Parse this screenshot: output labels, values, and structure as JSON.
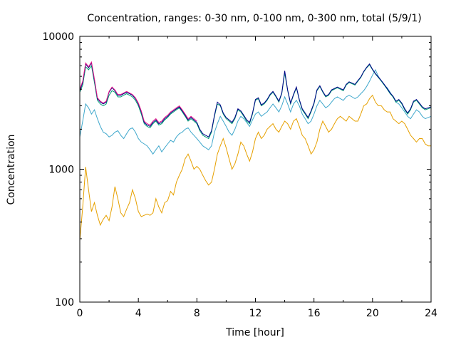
{
  "chart_data": {
    "type": "line",
    "title": "Concentration, ranges: 0-30 nm, 0-100 nm, 0-300 nm, total (5/9/1)",
    "xlabel": "Time [hour]",
    "ylabel": "Concentration",
    "xlim": [
      0,
      24
    ],
    "ylim": [
      100,
      10000
    ],
    "yscale": "log",
    "grid": false,
    "x_ticks": [
      0,
      4,
      8,
      12,
      16,
      20,
      24
    ],
    "x_tick_labels": [
      "0",
      "4",
      "8",
      "12",
      "16",
      "20",
      "24"
    ],
    "y_ticks": [
      100,
      1000,
      10000
    ],
    "y_tick_labels": [
      "100",
      "1000",
      "10000"
    ],
    "series": [
      {
        "color": "#e6a000",
        "x": [
          0,
          0.2,
          0.4,
          0.6,
          0.8,
          1,
          1.2,
          1.4,
          1.6,
          1.8,
          2,
          2.2,
          2.4,
          2.6,
          2.8,
          3,
          3.2,
          3.4,
          3.6,
          3.8,
          4,
          4.2,
          4.4,
          4.6,
          4.8,
          5,
          5.2,
          5.4,
          5.6,
          5.8,
          6,
          6.2,
          6.4,
          6.6,
          6.8,
          7,
          7.2,
          7.4,
          7.6,
          7.8,
          8,
          8.2,
          8.4,
          8.6,
          8.8,
          9,
          9.2,
          9.4,
          9.6,
          9.8,
          10,
          10.2,
          10.4,
          10.6,
          10.8,
          11,
          11.2,
          11.4,
          11.6,
          11.8,
          12,
          12.2,
          12.4,
          12.6,
          12.8,
          13,
          13.2,
          13.4,
          13.6,
          13.8,
          14,
          14.2,
          14.4,
          14.6,
          14.8,
          15,
          15.2,
          15.4,
          15.6,
          15.8,
          16,
          16.2,
          16.4,
          16.6,
          16.8,
          17,
          17.2,
          17.4,
          17.6,
          17.8,
          18,
          18.2,
          18.4,
          18.6,
          18.8,
          19,
          19.2,
          19.4,
          19.6,
          19.8,
          20,
          20.2,
          20.4,
          20.6,
          20.8,
          21,
          21.2,
          21.4,
          21.6,
          21.8,
          22,
          22.2,
          22.4,
          22.6,
          22.8,
          23,
          23.2,
          23.4,
          23.6,
          23.8,
          24
        ],
        "values": [
          290,
          520,
          1040,
          700,
          480,
          560,
          450,
          380,
          420,
          450,
          410,
          520,
          740,
          600,
          470,
          440,
          500,
          560,
          700,
          600,
          480,
          440,
          450,
          460,
          450,
          470,
          600,
          520,
          470,
          560,
          580,
          680,
          640,
          800,
          900,
          1000,
          1200,
          1300,
          1150,
          1000,
          1050,
          1000,
          900,
          820,
          760,
          800,
          1000,
          1300,
          1500,
          1700,
          1450,
          1200,
          1000,
          1100,
          1300,
          1600,
          1500,
          1300,
          1150,
          1350,
          1700,
          1900,
          1700,
          1800,
          2000,
          2100,
          2200,
          2000,
          1900,
          2100,
          2300,
          2200,
          2000,
          2300,
          2400,
          2100,
          1800,
          1700,
          1500,
          1300,
          1400,
          1600,
          2000,
          2300,
          2100,
          1900,
          2000,
          2200,
          2400,
          2500,
          2400,
          2300,
          2500,
          2400,
          2300,
          2300,
          2600,
          3000,
          3100,
          3400,
          3600,
          3200,
          3000,
          3000,
          2800,
          2700,
          2700,
          2400,
          2300,
          2200,
          2300,
          2200,
          2000,
          1800,
          1700,
          1600,
          1700,
          1700,
          1550,
          1500,
          1500
        ]
      },
      {
        "color": "#40a8cc",
        "x": [
          0,
          0.2,
          0.4,
          0.6,
          0.8,
          1,
          1.2,
          1.4,
          1.6,
          1.8,
          2,
          2.2,
          2.4,
          2.6,
          2.8,
          3,
          3.2,
          3.4,
          3.6,
          3.8,
          4,
          4.2,
          4.4,
          4.6,
          4.8,
          5,
          5.2,
          5.4,
          5.6,
          5.8,
          6,
          6.2,
          6.4,
          6.6,
          6.8,
          7,
          7.2,
          7.4,
          7.6,
          7.8,
          8,
          8.2,
          8.4,
          8.6,
          8.8,
          9,
          9.2,
          9.4,
          9.6,
          9.8,
          10,
          10.2,
          10.4,
          10.6,
          10.8,
          11,
          11.2,
          11.4,
          11.6,
          11.8,
          12,
          12.2,
          12.4,
          12.6,
          12.8,
          13,
          13.2,
          13.4,
          13.6,
          13.8,
          14,
          14.2,
          14.4,
          14.6,
          14.8,
          15,
          15.2,
          15.4,
          15.6,
          15.8,
          16,
          16.2,
          16.4,
          16.6,
          16.8,
          17,
          17.2,
          17.4,
          17.6,
          17.8,
          18,
          18.2,
          18.4,
          18.6,
          18.8,
          19,
          19.2,
          19.4,
          19.6,
          19.8,
          20,
          20.2,
          20.4,
          20.6,
          20.8,
          21,
          21.2,
          21.4,
          21.6,
          21.8,
          22,
          22.2,
          22.4,
          22.6,
          22.8,
          23,
          23.2,
          23.4,
          23.6,
          23.8,
          24
        ],
        "values": [
          1750,
          2300,
          3100,
          2900,
          2600,
          2800,
          2400,
          2100,
          1900,
          1850,
          1750,
          1800,
          1900,
          1950,
          1800,
          1700,
          1850,
          2000,
          2050,
          1900,
          1700,
          1600,
          1550,
          1500,
          1400,
          1300,
          1400,
          1500,
          1350,
          1450,
          1550,
          1650,
          1600,
          1750,
          1850,
          1900,
          2000,
          2050,
          1900,
          1800,
          1700,
          1600,
          1500,
          1450,
          1400,
          1500,
          1900,
          2200,
          2500,
          2300,
          2100,
          1900,
          1800,
          2000,
          2300,
          2500,
          2400,
          2250,
          2100,
          2350,
          2600,
          2700,
          2500,
          2600,
          2700,
          2900,
          3100,
          2900,
          2700,
          3000,
          3500,
          3100,
          2700,
          3100,
          3300,
          3000,
          2600,
          2400,
          2200,
          2300,
          2600,
          3000,
          3300,
          3100,
          2900,
          3000,
          3200,
          3400,
          3500,
          3400,
          3300,
          3500,
          3600,
          3500,
          3400,
          3500,
          3700,
          3900,
          4200,
          4600,
          5100,
          5600,
          5000,
          4600,
          4300,
          4100,
          3800,
          3500,
          3200,
          3100,
          2900,
          2700,
          2500,
          2400,
          2600,
          2800,
          2700,
          2500,
          2400,
          2450,
          2500
        ]
      },
      {
        "color": "#009e73",
        "x": [
          0,
          0.2,
          0.4,
          0.6,
          0.8,
          1,
          1.2,
          1.4,
          1.6,
          1.8,
          2,
          2.2,
          2.4,
          2.6,
          2.8,
          3,
          3.2,
          3.4,
          3.6,
          3.8,
          4,
          4.2,
          4.4,
          4.6,
          4.8,
          5,
          5.2,
          5.4,
          5.6,
          5.8,
          6,
          6.2,
          6.4,
          6.6,
          6.8,
          7,
          7.2,
          7.4,
          7.6,
          7.8,
          8,
          8.2,
          8.4,
          8.6,
          8.8,
          9,
          9.2,
          9.4,
          9.6,
          9.8,
          10,
          10.2,
          10.4,
          10.6,
          10.8,
          11,
          11.2,
          11.4,
          11.6,
          11.8,
          12,
          12.2,
          12.4,
          12.6,
          12.8,
          13,
          13.2,
          13.4,
          13.6,
          13.8,
          14,
          14.2,
          14.4,
          14.6,
          14.8,
          15,
          15.2,
          15.4,
          15.6,
          15.8,
          16,
          16.2,
          16.4,
          16.6,
          16.8,
          17,
          17.2,
          17.4,
          17.6,
          17.8,
          18,
          18.2,
          18.4,
          18.6,
          18.8,
          19,
          19.2,
          19.4,
          19.6,
          19.8,
          20,
          20.2,
          20.4,
          20.6,
          20.8,
          21,
          21.2,
          21.4,
          21.6,
          21.8,
          22,
          22.2,
          22.4,
          22.6,
          22.8,
          23,
          23.2,
          23.4,
          23.6,
          23.8,
          24
        ],
        "values": [
          3800,
          4300,
          5900,
          5600,
          6000,
          4500,
          3300,
          3100,
          3000,
          3100,
          3600,
          3900,
          3800,
          3500,
          3500,
          3600,
          3700,
          3600,
          3500,
          3300,
          3000,
          2600,
          2200,
          2100,
          2050,
          2200,
          2300,
          2150,
          2200,
          2350,
          2450,
          2600,
          2700,
          2800,
          2900,
          2700,
          2500,
          2300,
          2400,
          2300,
          2200,
          1950,
          1800,
          1750,
          1700,
          1900,
          2500,
          3100,
          3000,
          2600,
          2400,
          2300,
          2200,
          2400,
          2800,
          2700,
          2500,
          2300,
          2200,
          2600,
          3300,
          3400,
          3000,
          3100,
          3300,
          3600,
          3800,
          3500,
          3200,
          3700,
          5300,
          3900,
          3100,
          3600,
          4100,
          3300,
          2800,
          2600,
          2400,
          2700,
          3100,
          3900,
          4200,
          3800,
          3500,
          3600,
          3900,
          4000,
          4100,
          4000,
          3900,
          4300,
          4500,
          4400,
          4300,
          4600,
          4900,
          5400,
          5800,
          6100,
          5600,
          5200,
          4900,
          4600,
          4300,
          4000,
          3700,
          3500,
          3200,
          3300,
          3100,
          2800,
          2600,
          2800,
          3200,
          3300,
          3100,
          2900,
          2800,
          2850,
          2900
        ]
      },
      {
        "color": "#000088",
        "x": [
          0,
          0.2,
          0.4,
          0.6,
          0.8,
          1,
          1.2,
          1.4,
          1.6,
          1.8,
          2,
          2.2,
          2.4,
          2.6,
          2.8,
          3,
          3.2,
          3.4,
          3.6,
          3.8,
          4,
          4.2,
          4.4,
          4.6,
          4.8,
          5,
          5.2,
          5.4,
          5.6,
          5.8,
          6,
          6.2,
          6.4,
          6.6,
          6.8,
          7,
          7.2,
          7.4,
          7.6,
          7.8,
          8,
          8.2,
          8.4,
          8.6,
          8.8,
          9,
          9.2,
          9.4,
          9.6,
          9.8,
          10,
          10.2,
          10.4,
          10.6,
          10.8,
          11,
          11.2,
          11.4,
          11.6,
          11.8,
          12,
          12.2,
          12.4,
          12.6,
          12.8,
          13,
          13.2,
          13.4,
          13.6,
          13.8,
          14,
          14.2,
          14.4,
          14.6,
          14.8,
          15,
          15.2,
          15.4,
          15.6,
          15.8,
          16,
          16.2,
          16.4,
          16.6,
          16.8,
          17,
          17.2,
          17.4,
          17.6,
          17.8,
          18,
          18.2,
          18.4,
          18.6,
          18.8,
          19,
          19.2,
          19.4,
          19.6,
          19.8,
          20,
          20.2,
          20.4,
          20.6,
          20.8,
          21,
          21.2,
          21.4,
          21.6,
          21.8,
          22,
          22.2,
          22.4,
          22.6,
          22.8,
          23,
          23.2,
          23.4,
          23.6,
          23.8,
          24
        ],
        "values": [
          3900,
          4500,
          6200,
          5800,
          6300,
          4700,
          3400,
          3200,
          3100,
          3200,
          3800,
          4100,
          3900,
          3600,
          3600,
          3700,
          3800,
          3700,
          3600,
          3400,
          3100,
          2700,
          2250,
          2150,
          2100,
          2250,
          2350,
          2200,
          2250,
          2400,
          2500,
          2650,
          2750,
          2850,
          2950,
          2750,
          2550,
          2350,
          2450,
          2350,
          2250,
          2000,
          1850,
          1800,
          1750,
          1950,
          2550,
          3200,
          3050,
          2650,
          2450,
          2350,
          2250,
          2450,
          2850,
          2750,
          2550,
          2350,
          2250,
          2650,
          3350,
          3450,
          3050,
          3150,
          3350,
          3650,
          3850,
          3550,
          3250,
          3750,
          5500,
          3950,
          3150,
          3650,
          4150,
          3350,
          2850,
          2650,
          2450,
          2750,
          3150,
          3950,
          4250,
          3850,
          3550,
          3650,
          3950,
          4050,
          4150,
          4050,
          3950,
          4350,
          4550,
          4450,
          4350,
          4650,
          4950,
          5450,
          5850,
          6200,
          5650,
          5250,
          4950,
          4650,
          4350,
          4050,
          3750,
          3550,
          3250,
          3350,
          3150,
          2850,
          2650,
          2850,
          3250,
          3350,
          3150,
          2950,
          2850,
          2900,
          2950
        ]
      },
      {
        "color": "#e8198a",
        "x": [
          0,
          0.2,
          0.4,
          0.6,
          0.8,
          1,
          1.2,
          1.4,
          1.6,
          1.8,
          2,
          2.2,
          2.4,
          2.6,
          2.8,
          3,
          3.2,
          3.4,
          3.6,
          3.8,
          4,
          4.2,
          4.4,
          4.6,
          4.8,
          5,
          5.2,
          5.4,
          5.6,
          5.8,
          6,
          6.2,
          6.4,
          6.6,
          6.8,
          7,
          7.2,
          7.4,
          7.6,
          7.8,
          8
        ],
        "values": [
          4000,
          4600,
          6300,
          5900,
          6400,
          4800,
          3450,
          3250,
          3150,
          3250,
          3850,
          4150,
          3950,
          3650,
          3650,
          3750,
          3850,
          3750,
          3650,
          3450,
          3150,
          2750,
          2300,
          2200,
          2150,
          2300,
          2400,
          2250,
          2300,
          2450,
          2550,
          2700,
          2800,
          2900,
          3000,
          2800,
          2600,
          2400,
          2500,
          2400,
          2300
        ]
      }
    ]
  }
}
